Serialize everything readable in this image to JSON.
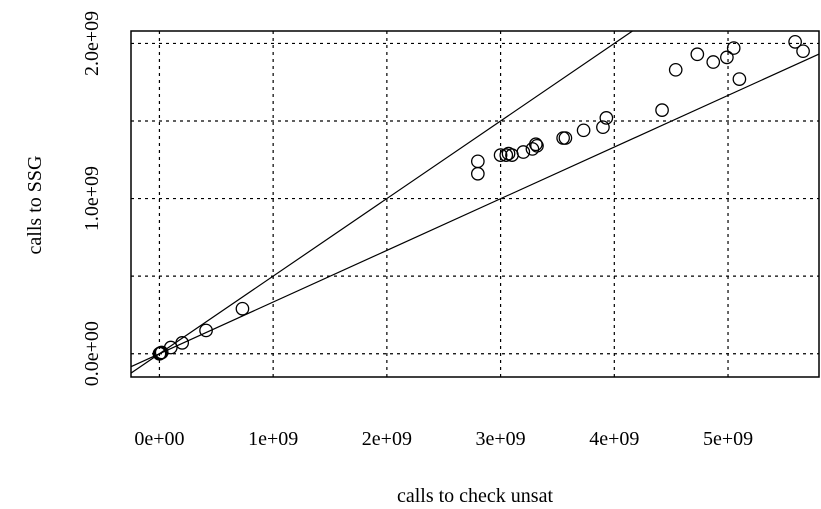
{
  "chart_data": {
    "type": "scatter",
    "xlabel": "calls to check unsat",
    "ylabel": "calls to SSG",
    "xlim": [
      -250000000,
      5800000000
    ],
    "ylim": [
      -150000000,
      2080000000
    ],
    "x_ticks": [
      {
        "value": 0,
        "label": "0e+00"
      },
      {
        "value": 1000000000,
        "label": "1e+09"
      },
      {
        "value": 2000000000,
        "label": "2e+09"
      },
      {
        "value": 3000000000,
        "label": "3e+09"
      },
      {
        "value": 4000000000,
        "label": "4e+09"
      },
      {
        "value": 5000000000,
        "label": "5e+09"
      }
    ],
    "y_ticks": [
      {
        "value": 0,
        "label": "0.0e+00"
      },
      {
        "value": 500000000,
        "label": ""
      },
      {
        "value": 1000000000,
        "label": "1.0e+09"
      },
      {
        "value": 1500000000,
        "label": ""
      },
      {
        "value": 2000000000,
        "label": "2.0e+09"
      }
    ],
    "x_grid": [
      0,
      1000000000,
      2000000000,
      3000000000,
      4000000000,
      5000000000
    ],
    "y_grid": [
      0,
      500000000,
      1000000000,
      1500000000,
      2000000000
    ],
    "grid": true,
    "grid_style": "dotted",
    "reference_lines": [
      {
        "slope": 0.5,
        "intercept": 0
      },
      {
        "slope": 0.333,
        "intercept": 0
      }
    ],
    "points": [
      [
        0,
        0
      ],
      [
        5000000,
        2000000
      ],
      [
        10000000,
        5000000
      ],
      [
        20000000,
        8000000
      ],
      [
        100000000,
        40000000
      ],
      [
        200000000,
        70000000
      ],
      [
        410000000,
        150000000
      ],
      [
        730000000,
        290000000
      ],
      [
        2800000000,
        1240000000
      ],
      [
        2800000000,
        1160000000
      ],
      [
        3000000000,
        1280000000
      ],
      [
        3050000000,
        1280000000
      ],
      [
        3070000000,
        1290000000
      ],
      [
        3100000000,
        1280000000
      ],
      [
        3200000000,
        1300000000
      ],
      [
        3280000000,
        1320000000
      ],
      [
        3310000000,
        1350000000
      ],
      [
        3320000000,
        1340000000
      ],
      [
        3550000000,
        1390000000
      ],
      [
        3570000000,
        1390000000
      ],
      [
        3730000000,
        1440000000
      ],
      [
        3900000000,
        1460000000
      ],
      [
        3930000000,
        1520000000
      ],
      [
        4420000000,
        1570000000
      ],
      [
        4540000000,
        1830000000
      ],
      [
        4730000000,
        1930000000
      ],
      [
        4870000000,
        1880000000
      ],
      [
        4990000000,
        1910000000
      ],
      [
        5050000000,
        1970000000
      ],
      [
        5100000000,
        1770000000
      ],
      [
        5590000000,
        2010000000
      ],
      [
        5660000000,
        1950000000
      ]
    ]
  }
}
